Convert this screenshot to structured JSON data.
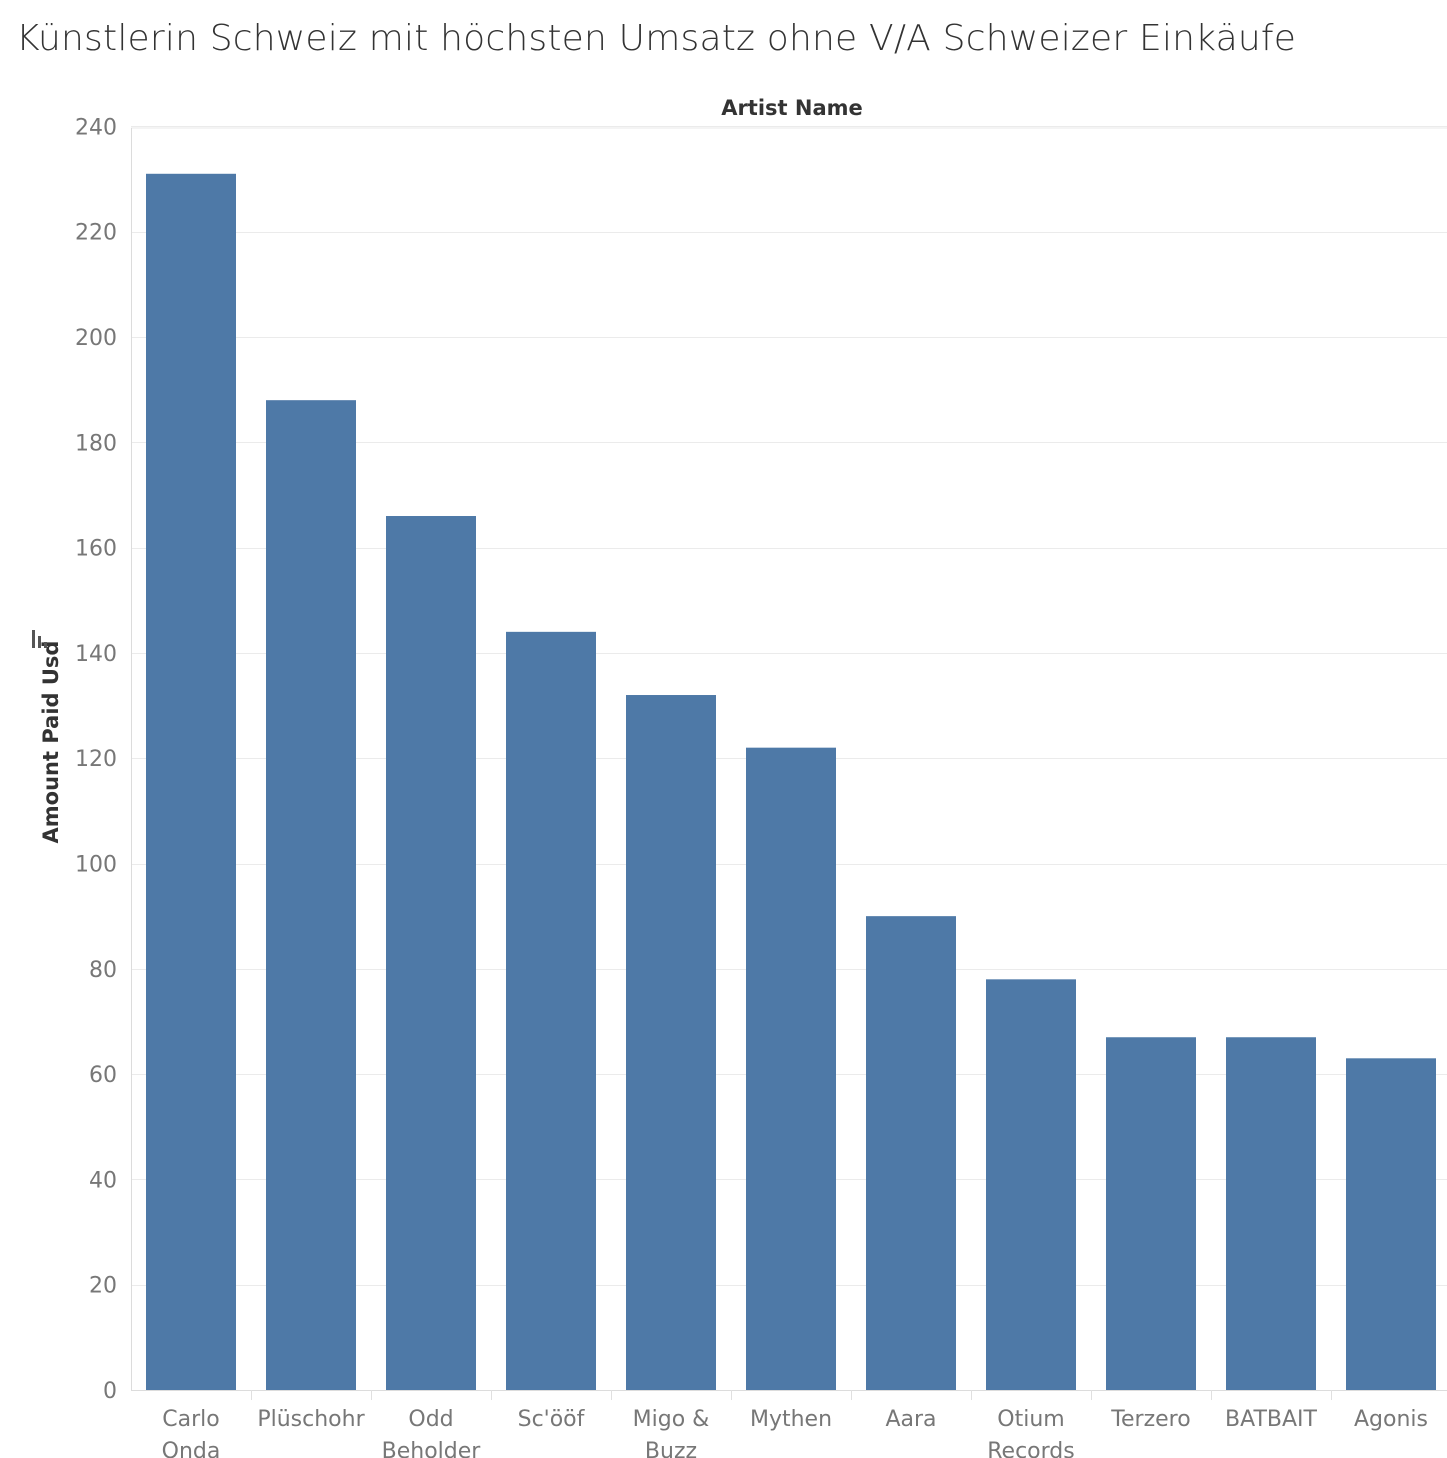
{
  "chart_data": {
    "type": "bar",
    "title": "Künstlerin Schweiz mit höchsten Umsatz ohne V/A Schweizer Einkäufe",
    "column_header": "Artist Name",
    "xlabel": "Artist Name",
    "ylabel": "Amount Paid Usd",
    "ylim": [
      0,
      240
    ],
    "yticks": [
      0,
      20,
      40,
      60,
      80,
      100,
      120,
      140,
      160,
      180,
      200,
      220,
      240
    ],
    "grid": true,
    "sort_icon": "sort-descending-icon",
    "bar_color": "#4e79a7",
    "categories": [
      [
        "Carlo",
        "Onda"
      ],
      [
        "Plüschohr"
      ],
      [
        "Odd",
        "Beholder"
      ],
      [
        "Sc'ööf"
      ],
      [
        "Migo &",
        "Buzz"
      ],
      [
        "Mythen"
      ],
      [
        "Aara"
      ],
      [
        "Otium",
        "Records"
      ],
      [
        "Terzero"
      ],
      [
        "BATBAIT"
      ],
      [
        "Agonis"
      ]
    ],
    "values": [
      231,
      188,
      166,
      144,
      132,
      122,
      90,
      78,
      67,
      67,
      63
    ]
  }
}
